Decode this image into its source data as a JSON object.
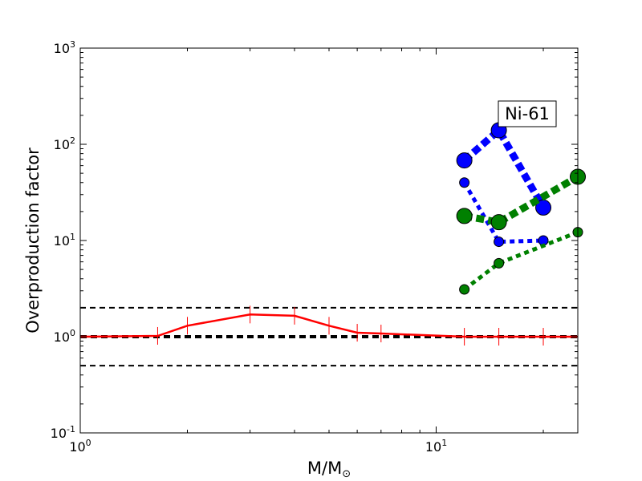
{
  "chart_data": {
    "type": "line",
    "title": "",
    "xlabel": "M/M",
    "xlabel_subscript": "⊙",
    "ylabel": "Overproduction factor",
    "xscale": "log",
    "yscale": "log",
    "xlim": [
      1,
      25
    ],
    "ylim": [
      0.1,
      1000
    ],
    "x_ticks": [
      {
        "value": 1,
        "base": "10",
        "exp": "0"
      },
      {
        "value": 10,
        "base": "10",
        "exp": "1"
      }
    ],
    "y_ticks": [
      {
        "value": 0.1,
        "base": "10",
        "exp": "-1"
      },
      {
        "value": 1,
        "base": "10",
        "exp": "0"
      },
      {
        "value": 10,
        "base": "10",
        "exp": "1"
      },
      {
        "value": 100,
        "base": "10",
        "exp": "2"
      },
      {
        "value": 1000,
        "base": "10",
        "exp": "3"
      }
    ],
    "grid": false,
    "annotation": "Ni-61",
    "reference_lines": [
      {
        "y": 2,
        "style": "dashed"
      },
      {
        "y": 1,
        "style": "dashed-thick"
      },
      {
        "y": 0.5,
        "style": "dashed"
      }
    ],
    "series": [
      {
        "color": "#ff0000",
        "style": "solid",
        "marker": "tick",
        "x": [
          1,
          1.65,
          2,
          3,
          4,
          5,
          6,
          7,
          12,
          15,
          20,
          25
        ],
        "y": [
          1.0,
          1.02,
          1.3,
          1.7,
          1.65,
          1.3,
          1.1,
          1.08,
          1.0,
          1.0,
          1.0,
          1.0
        ]
      },
      {
        "color": "#0000ff",
        "style": "dashed-thick",
        "marker": "circle-large",
        "x": [
          12,
          15,
          20
        ],
        "y": [
          68,
          140,
          22
        ]
      },
      {
        "color": "#0000ff",
        "style": "dotted",
        "marker": "circle-small",
        "x": [
          12,
          15,
          20
        ],
        "y": [
          40,
          9.7,
          10
        ]
      },
      {
        "color": "#008000",
        "style": "dashed-thick",
        "marker": "circle-large",
        "x": [
          12,
          15,
          25
        ],
        "y": [
          18,
          15.5,
          46
        ]
      },
      {
        "color": "#008000",
        "style": "dotted",
        "marker": "circle-small",
        "x": [
          12,
          15,
          25
        ],
        "y": [
          3.1,
          5.8,
          12.2
        ]
      }
    ]
  }
}
